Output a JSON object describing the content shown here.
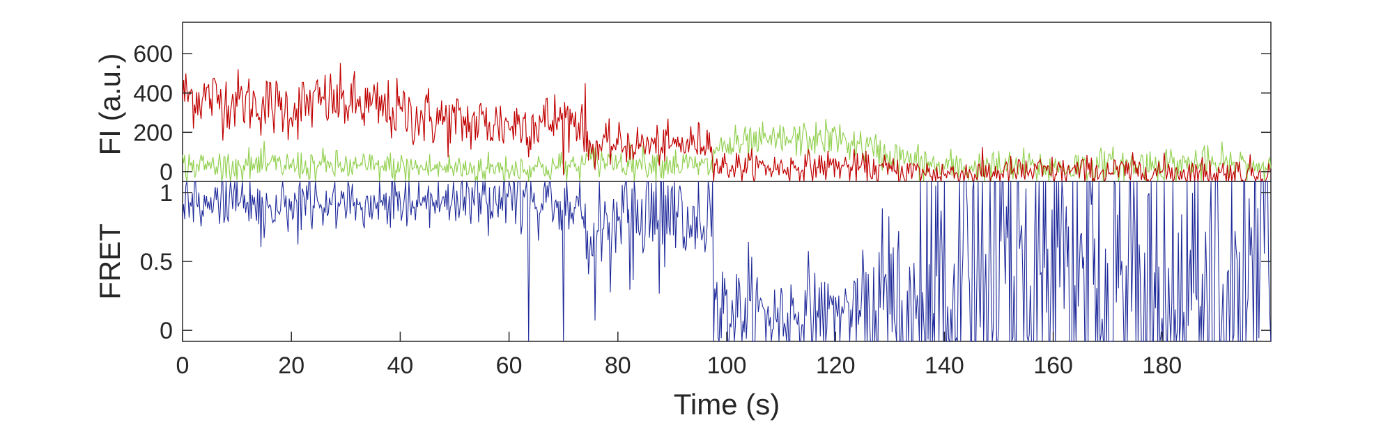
{
  "chart_data": [
    {
      "id": "fluorescence",
      "type": "line",
      "title": "",
      "ylabel": "FI (a.u.)",
      "xlabel": "",
      "xlim": [
        0,
        200
      ],
      "ylim": [
        -50,
        760
      ],
      "yticks": [
        0,
        200,
        400,
        600
      ],
      "ytick_labels": [
        "0",
        "200",
        "400",
        "600"
      ],
      "grid": false,
      "legend": "none",
      "sample_interval_s": 0.2,
      "series": [
        {
          "color": "#c00000",
          "description_segments": [
            {
              "x": [
                0,
                10,
                20,
                26,
                30,
                40,
                50,
                60,
                70,
                74
              ],
              "y": [
                390,
                360,
                320,
                360,
                350,
                300,
                250,
                240,
                260,
                270
              ]
            },
            {
              "x": [
                74.5,
                80,
                90,
                97.5
              ],
              "y": [
                120,
                140,
                130,
                160
              ]
            },
            {
              "x": [
                98,
                110,
                120,
                130,
                140,
                160,
                180,
                200
              ],
              "y": [
                30,
                20,
                30,
                5,
                -10,
                0,
                0,
                -10
              ]
            }
          ],
          "noise_sd": [
            80,
            50,
            40
          ]
        },
        {
          "color": "#92d050",
          "description_segments": [
            {
              "x": [
                0,
                20,
                40,
                60,
                74
              ],
              "y": [
                30,
                30,
                20,
                15,
                30
              ]
            },
            {
              "x": [
                74.5,
                90,
                97.5
              ],
              "y": [
                60,
                40,
                20
              ]
            },
            {
              "x": [
                98,
                110,
                120,
                130,
                140,
                160,
                180,
                200
              ],
              "y": [
                120,
                160,
                170,
                80,
                20,
                20,
                40,
                30
              ]
            }
          ],
          "noise_sd": [
            40,
            40,
            45
          ]
        }
      ]
    },
    {
      "id": "fret",
      "type": "line",
      "title": "",
      "ylabel": "FRET",
      "xlabel": "Time (s)",
      "xlim": [
        0,
        200
      ],
      "ylim": [
        -0.08,
        1.08
      ],
      "xticks": [
        0,
        20,
        40,
        60,
        80,
        100,
        120,
        140,
        160,
        180
      ],
      "xtick_labels": [
        "0",
        "20",
        "40",
        "60",
        "80",
        "100",
        "120",
        "140",
        "160",
        "180"
      ],
      "yticks": [
        0,
        0.5,
        1
      ],
      "ytick_labels": [
        "0",
        "0.5",
        "1"
      ],
      "grid": false,
      "legend": "none",
      "series": [
        {
          "color": "#1f2a9a",
          "derived_from": "acceptor / (donor + acceptor)",
          "clip": [
            -0.08,
            1.08
          ]
        }
      ]
    }
  ],
  "colors": {
    "acceptor": "#c00000",
    "donor": "#92d050",
    "fret": "#1f2a9a",
    "axes": "#262626"
  }
}
